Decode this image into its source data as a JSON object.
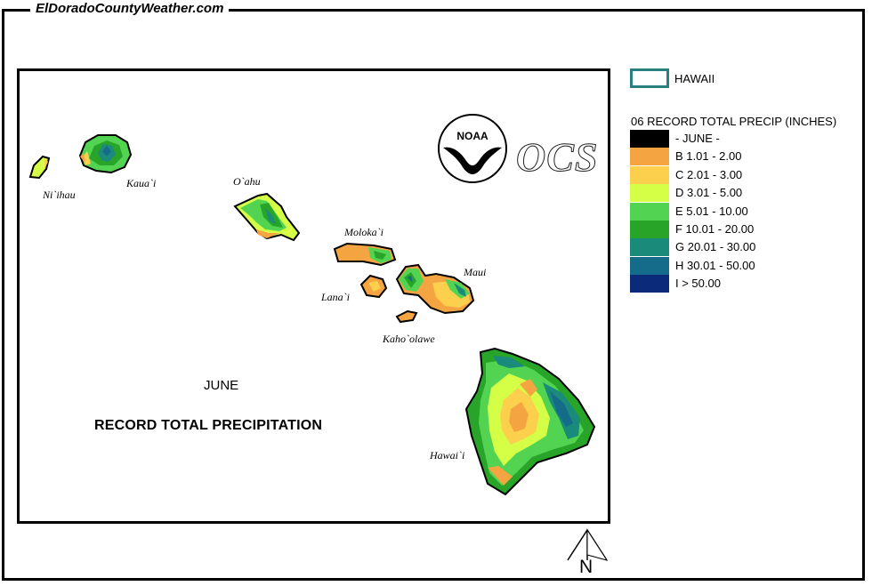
{
  "site": {
    "title": "ElDoradoCountyWeather.com"
  },
  "map": {
    "month": "JUNE",
    "title": "RECORD TOTAL PRECIPITATION",
    "islands": {
      "niihau": "Ni`ihau",
      "kauai": "Kaua`i",
      "oahu": "O`ahu",
      "molokai": "Moloka`i",
      "lanai": "Lana`i",
      "maui": "Maui",
      "kahoolawe": "Kaho`olawe",
      "hawaii": "Hawai`i"
    },
    "logo_text": "NOAA",
    "ocs_text": "OCS"
  },
  "legend": {
    "area_label": "HAWAII",
    "area_color": "#2a8080",
    "title": "06 RECORD TOTAL PRECIP (INCHES)",
    "items": [
      {
        "label": "- JUNE -",
        "color": "#000000"
      },
      {
        "label": "B 1.01 - 2.00",
        "color": "#f5a442"
      },
      {
        "label": "C 2.01 - 3.00",
        "color": "#fcd04c"
      },
      {
        "label": "D 3.01 - 5.00",
        "color": "#d4ff46"
      },
      {
        "label": "E 5.01 - 10.00",
        "color": "#52d452"
      },
      {
        "label": "F 10.01 - 20.00",
        "color": "#28a428"
      },
      {
        "label": "G 20.01 - 30.00",
        "color": "#1a8a7a"
      },
      {
        "label": "H 30.01 - 50.00",
        "color": "#156b8a"
      },
      {
        "label": "I > 50.00",
        "color": "#0c2a7a"
      }
    ]
  },
  "north_label": "N"
}
